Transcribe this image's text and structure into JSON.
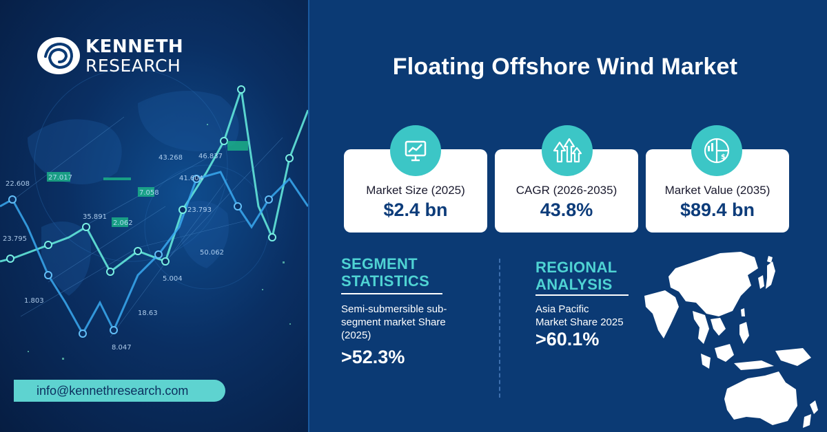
{
  "brand": {
    "line1": "KENNETH",
    "line2": "RESEARCH",
    "email": "info@kennethresearch.com"
  },
  "title": "Floating Offshore Wind Market",
  "cards": [
    {
      "icon": "presentation-chart-icon",
      "label": "Market Size (2025)",
      "value": "$2.4 bn"
    },
    {
      "icon": "growth-arrows-icon",
      "label": "CAGR (2026-2035)",
      "value": "43.8%"
    },
    {
      "icon": "pie-chart-dollar-icon",
      "label": "Market Value (2035)",
      "value": "$89.4 bn"
    }
  ],
  "segment": {
    "heading_line1": "SEGMENT",
    "heading_line2": "STATISTICS",
    "desc_line1": "Semi-submersible sub-",
    "desc_line2": "segment market Share",
    "desc_line3": "(2025)",
    "value": ">52.3%"
  },
  "regional": {
    "heading_line1": "REGIONAL",
    "heading_line2": "ANALYSIS",
    "desc_line1": "Asia Pacific",
    "desc_line2": "Market Share 2025",
    "value": ">60.1%",
    "map_icon": "asia-pacific-map-icon"
  },
  "background_numbers": [
    "22.608",
    "27.017",
    "23.795",
    "35.891",
    "2.062",
    "43.268",
    "46.837",
    "41.604",
    "7.058",
    "1.803",
    "5.004",
    "18.63",
    "8.047",
    "23.793",
    "50.062"
  ],
  "colors": {
    "background": "#0b3a74",
    "accent_teal": "#4fd3d3",
    "card_bg": "#ffffff",
    "value_navy": "#0d3c7a",
    "email_pill": "#5ed3d0"
  }
}
